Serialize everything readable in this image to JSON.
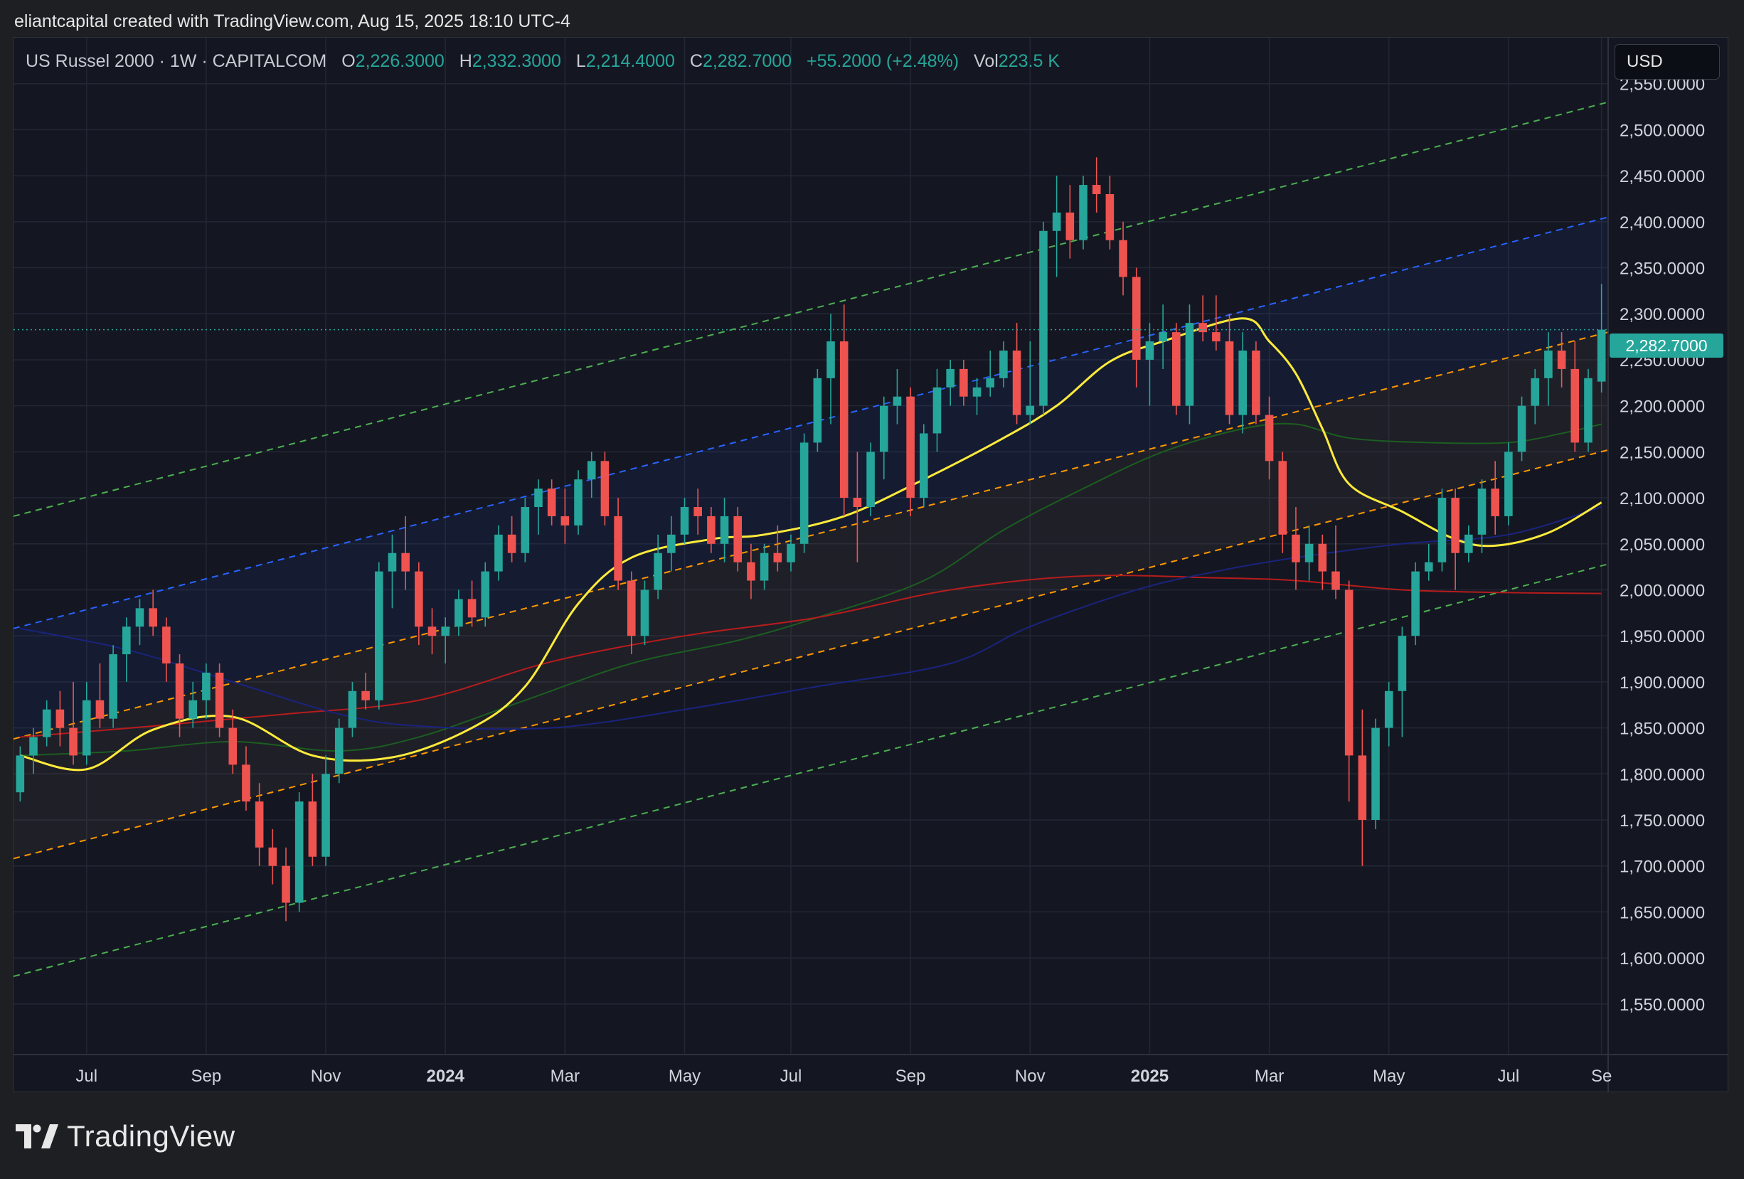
{
  "header": {
    "credit": "eliantcapital created with TradingView.com, Aug 15, 2025 18:10 UTC-4"
  },
  "legend": {
    "symbol": "US Russel 2000 · 1W · CAPITALCOM",
    "open_label": "O",
    "open": "2,226.3000",
    "high_label": "H",
    "high": "2,332.3000",
    "low_label": "L",
    "low": "2,214.4000",
    "close_label": "C",
    "close": "2,282.7000",
    "change": "+55.2000 (+2.48%)",
    "vol_label": "Vol",
    "vol": "223.5 K"
  },
  "currency_button": "USD",
  "last_price_tag": "2,282.7000",
  "brand": {
    "name": "TradingView",
    "logo_icon": "tradingview-logo-icon"
  },
  "colors": {
    "background": "#141722",
    "up_candle": "#26a69a",
    "down_candle": "#ef5350",
    "ema_yellow": "#ffeb3b",
    "ma_green": "#1b5e20",
    "ma_red": "#b71c1c",
    "ma_blue": "#1a237e",
    "channel_outer": "#4caf50",
    "channel_upper": "#2962ff",
    "channel_inner": "#ff9800"
  },
  "chart_data": {
    "type": "candlestick",
    "timeframe": "1W",
    "y_axis": {
      "ticks": [
        1550,
        1600,
        1650,
        1700,
        1750,
        1800,
        1850,
        1900,
        1950,
        2000,
        2050,
        2100,
        2150,
        2200,
        2250,
        2300,
        2350,
        2400,
        2450,
        2500,
        2550
      ],
      "tick_labels": [
        "1,550.0000",
        "1,600.0000",
        "1,650.0000",
        "1,700.0000",
        "1,750.0000",
        "1,800.0000",
        "1,850.0000",
        "1,900.0000",
        "1,950.0000",
        "2,000.0000",
        "2,050.0000",
        "2,100.0000",
        "2,150.0000",
        "2,200.0000",
        "2,250.0000",
        "2,300.0000",
        "2,350.0000",
        "2,400.0000",
        "2,450.0000",
        "2,500.0000",
        "2,550.0000"
      ],
      "range": [
        1495,
        2600
      ],
      "position": "right"
    },
    "x_axis": {
      "labels": [
        {
          "text": "Jul",
          "week": 5,
          "bold": false
        },
        {
          "text": "Sep",
          "week": 14,
          "bold": false
        },
        {
          "text": "Nov",
          "week": 23,
          "bold": false
        },
        {
          "text": "2024",
          "week": 32,
          "bold": true
        },
        {
          "text": "Mar",
          "week": 41,
          "bold": false
        },
        {
          "text": "May",
          "week": 50,
          "bold": false
        },
        {
          "text": "Jul",
          "week": 58,
          "bold": false
        },
        {
          "text": "Sep",
          "week": 67,
          "bold": false
        },
        {
          "text": "Nov",
          "week": 76,
          "bold": false
        },
        {
          "text": "2025",
          "week": 85,
          "bold": true
        },
        {
          "text": "Mar",
          "week": 94,
          "bold": false
        },
        {
          "text": "May",
          "week": 103,
          "bold": false
        },
        {
          "text": "Jul",
          "week": 112,
          "bold": false
        },
        {
          "text": "Se",
          "week": 119,
          "bold": false
        }
      ],
      "range": [
        -0.5,
        119.5
      ]
    },
    "last_price": 2282.7,
    "candles": [
      [
        1780,
        1830,
        1770,
        1820
      ],
      [
        1820,
        1850,
        1800,
        1840
      ],
      [
        1840,
        1880,
        1830,
        1870
      ],
      [
        1870,
        1890,
        1830,
        1850
      ],
      [
        1850,
        1900,
        1810,
        1820
      ],
      [
        1820,
        1900,
        1810,
        1880
      ],
      [
        1880,
        1920,
        1850,
        1860
      ],
      [
        1860,
        1940,
        1850,
        1930
      ],
      [
        1930,
        1970,
        1900,
        1960
      ],
      [
        1960,
        1990,
        1940,
        1980
      ],
      [
        1980,
        2000,
        1950,
        1960
      ],
      [
        1960,
        1970,
        1900,
        1920
      ],
      [
        1920,
        1930,
        1840,
        1860
      ],
      [
        1860,
        1900,
        1850,
        1880
      ],
      [
        1880,
        1920,
        1860,
        1910
      ],
      [
        1910,
        1920,
        1840,
        1850
      ],
      [
        1850,
        1870,
        1800,
        1810
      ],
      [
        1810,
        1830,
        1760,
        1770
      ],
      [
        1770,
        1790,
        1700,
        1720
      ],
      [
        1720,
        1740,
        1680,
        1700
      ],
      [
        1700,
        1720,
        1640,
        1660
      ],
      [
        1660,
        1780,
        1650,
        1770
      ],
      [
        1770,
        1800,
        1700,
        1710
      ],
      [
        1710,
        1820,
        1700,
        1800
      ],
      [
        1800,
        1860,
        1790,
        1850
      ],
      [
        1850,
        1900,
        1840,
        1890
      ],
      [
        1890,
        1910,
        1870,
        1880
      ],
      [
        1880,
        2030,
        1870,
        2020
      ],
      [
        2020,
        2060,
        1980,
        2040
      ],
      [
        2040,
        2080,
        2000,
        2020
      ],
      [
        2020,
        2030,
        1940,
        1960
      ],
      [
        1960,
        1980,
        1930,
        1950
      ],
      [
        1950,
        1970,
        1920,
        1960
      ],
      [
        1960,
        2000,
        1950,
        1990
      ],
      [
        1990,
        2010,
        1960,
        1970
      ],
      [
        1970,
        2030,
        1960,
        2020
      ],
      [
        2020,
        2070,
        2010,
        2060
      ],
      [
        2060,
        2080,
        2030,
        2040
      ],
      [
        2040,
        2100,
        2030,
        2090
      ],
      [
        2090,
        2120,
        2060,
        2110
      ],
      [
        2110,
        2120,
        2070,
        2080
      ],
      [
        2080,
        2110,
        2050,
        2070
      ],
      [
        2070,
        2130,
        2060,
        2120
      ],
      [
        2120,
        2150,
        2100,
        2140
      ],
      [
        2140,
        2150,
        2070,
        2080
      ],
      [
        2080,
        2100,
        2000,
        2010
      ],
      [
        2010,
        2020,
        1930,
        1950
      ],
      [
        1950,
        2010,
        1940,
        2000
      ],
      [
        2000,
        2060,
        1990,
        2040
      ],
      [
        2040,
        2080,
        2020,
        2060
      ],
      [
        2060,
        2100,
        2050,
        2090
      ],
      [
        2090,
        2110,
        2060,
        2080
      ],
      [
        2080,
        2090,
        2040,
        2050
      ],
      [
        2050,
        2100,
        2030,
        2080
      ],
      [
        2080,
        2090,
        2020,
        2030
      ],
      [
        2030,
        2050,
        1990,
        2010
      ],
      [
        2010,
        2050,
        2000,
        2040
      ],
      [
        2040,
        2070,
        2020,
        2030
      ],
      [
        2030,
        2060,
        2020,
        2050
      ],
      [
        2050,
        2170,
        2040,
        2160
      ],
      [
        2160,
        2240,
        2150,
        2230
      ],
      [
        2230,
        2300,
        2180,
        2270
      ],
      [
        2270,
        2310,
        2080,
        2100
      ],
      [
        2100,
        2150,
        2030,
        2090
      ],
      [
        2090,
        2160,
        2080,
        2150
      ],
      [
        2150,
        2210,
        2120,
        2200
      ],
      [
        2200,
        2240,
        2180,
        2210
      ],
      [
        2210,
        2220,
        2080,
        2100
      ],
      [
        2100,
        2180,
        2090,
        2170
      ],
      [
        2170,
        2240,
        2150,
        2220
      ],
      [
        2220,
        2250,
        2200,
        2240
      ],
      [
        2240,
        2250,
        2200,
        2210
      ],
      [
        2210,
        2230,
        2190,
        2220
      ],
      [
        2220,
        2260,
        2210,
        2230
      ],
      [
        2230,
        2270,
        2220,
        2260
      ],
      [
        2260,
        2290,
        2180,
        2190
      ],
      [
        2190,
        2270,
        2180,
        2200
      ],
      [
        2200,
        2400,
        2190,
        2390
      ],
      [
        2390,
        2450,
        2340,
        2410
      ],
      [
        2410,
        2440,
        2360,
        2380
      ],
      [
        2380,
        2450,
        2370,
        2440
      ],
      [
        2440,
        2470,
        2410,
        2430
      ],
      [
        2430,
        2450,
        2370,
        2380
      ],
      [
        2380,
        2400,
        2320,
        2340
      ],
      [
        2340,
        2350,
        2220,
        2250
      ],
      [
        2250,
        2290,
        2200,
        2270
      ],
      [
        2270,
        2310,
        2240,
        2280
      ],
      [
        2280,
        2290,
        2190,
        2200
      ],
      [
        2200,
        2310,
        2180,
        2290
      ],
      [
        2290,
        2320,
        2270,
        2280
      ],
      [
        2280,
        2320,
        2260,
        2270
      ],
      [
        2270,
        2300,
        2180,
        2190
      ],
      [
        2190,
        2280,
        2170,
        2260
      ],
      [
        2260,
        2270,
        2180,
        2190
      ],
      [
        2190,
        2210,
        2120,
        2140
      ],
      [
        2140,
        2150,
        2040,
        2060
      ],
      [
        2060,
        2090,
        2000,
        2030
      ],
      [
        2030,
        2070,
        2010,
        2050
      ],
      [
        2050,
        2060,
        2000,
        2020
      ],
      [
        2020,
        2070,
        1990,
        2000
      ],
      [
        2000,
        2010,
        1770,
        1820
      ],
      [
        1820,
        1870,
        1700,
        1750
      ],
      [
        1750,
        1860,
        1740,
        1850
      ],
      [
        1850,
        1900,
        1830,
        1890
      ],
      [
        1890,
        1960,
        1840,
        1950
      ],
      [
        1950,
        2030,
        1940,
        2020
      ],
      [
        2020,
        2050,
        2010,
        2030
      ],
      [
        2030,
        2110,
        2020,
        2100
      ],
      [
        2100,
        2110,
        2000,
        2040
      ],
      [
        2040,
        2070,
        2030,
        2060
      ],
      [
        2060,
        2120,
        2040,
        2110
      ],
      [
        2110,
        2140,
        2060,
        2080
      ],
      [
        2080,
        2160,
        2070,
        2150
      ],
      [
        2150,
        2210,
        2140,
        2200
      ],
      [
        2200,
        2240,
        2180,
        2230
      ],
      [
        2230,
        2280,
        2200,
        2260
      ],
      [
        2260,
        2280,
        2220,
        2240
      ],
      [
        2240,
        2270,
        2150,
        2160
      ],
      [
        2160,
        2240,
        2150,
        2230
      ],
      [
        2226.3,
        2332.3,
        2214.4,
        2282.7
      ]
    ],
    "moving_averages": [
      {
        "color": "#ffeb3b",
        "width": 3,
        "points": [
          [
            0,
            1820
          ],
          [
            5,
            1805
          ],
          [
            10,
            1848
          ],
          [
            16,
            1862
          ],
          [
            22,
            1820
          ],
          [
            28,
            1818
          ],
          [
            34,
            1850
          ],
          [
            38,
            1895
          ],
          [
            42,
            1985
          ],
          [
            46,
            2035
          ],
          [
            52,
            2055
          ],
          [
            56,
            2060
          ],
          [
            62,
            2080
          ],
          [
            68,
            2120
          ],
          [
            74,
            2165
          ],
          [
            78,
            2200
          ],
          [
            82,
            2248
          ],
          [
            86,
            2270
          ],
          [
            92,
            2295
          ],
          [
            94,
            2270
          ],
          [
            96,
            2235
          ],
          [
            98,
            2175
          ],
          [
            100,
            2115
          ],
          [
            104,
            2085
          ],
          [
            108,
            2055
          ],
          [
            111,
            2048
          ],
          [
            115,
            2062
          ],
          [
            119,
            2095
          ]
        ]
      },
      {
        "color": "#1b5e20",
        "width": 2,
        "points": [
          [
            0,
            1820
          ],
          [
            8,
            1825
          ],
          [
            16,
            1835
          ],
          [
            24,
            1825
          ],
          [
            30,
            1840
          ],
          [
            38,
            1880
          ],
          [
            46,
            1920
          ],
          [
            54,
            1945
          ],
          [
            60,
            1970
          ],
          [
            68,
            2010
          ],
          [
            74,
            2065
          ],
          [
            80,
            2110
          ],
          [
            86,
            2150
          ],
          [
            92,
            2175
          ],
          [
            96,
            2180
          ],
          [
            100,
            2165
          ],
          [
            106,
            2160
          ],
          [
            112,
            2160
          ],
          [
            116,
            2170
          ],
          [
            119,
            2180
          ]
        ]
      },
      {
        "color": "#b71c1c",
        "width": 2,
        "points": [
          [
            0,
            1840
          ],
          [
            10,
            1852
          ],
          [
            20,
            1865
          ],
          [
            30,
            1880
          ],
          [
            40,
            1922
          ],
          [
            50,
            1950
          ],
          [
            60,
            1970
          ],
          [
            70,
            2000
          ],
          [
            80,
            2015
          ],
          [
            90,
            2013
          ],
          [
            96,
            2010
          ],
          [
            104,
            2000
          ],
          [
            112,
            1997
          ],
          [
            119,
            1996
          ]
        ]
      },
      {
        "color": "#1a237e",
        "width": 2,
        "points": [
          [
            0,
            1958
          ],
          [
            8,
            1935
          ],
          [
            16,
            1900
          ],
          [
            24,
            1865
          ],
          [
            30,
            1852
          ],
          [
            40,
            1850
          ],
          [
            50,
            1870
          ],
          [
            60,
            1895
          ],
          [
            70,
            1920
          ],
          [
            76,
            1960
          ],
          [
            84,
            2000
          ],
          [
            90,
            2020
          ],
          [
            96,
            2035
          ],
          [
            104,
            2050
          ],
          [
            112,
            2060
          ],
          [
            119,
            2090
          ]
        ]
      }
    ],
    "channel_lines": [
      {
        "name": "outer-upper",
        "color": "#4caf50",
        "start": [
          -0.5,
          2080
        ],
        "end": [
          119.5,
          2530
        ]
      },
      {
        "name": "upper",
        "color": "#2962ff",
        "start": [
          -0.5,
          1958
        ],
        "end": [
          119.5,
          2405
        ]
      },
      {
        "name": "inner-upper",
        "color": "#ff9800",
        "start": [
          -0.5,
          1838
        ],
        "end": [
          119.5,
          2280
        ]
      },
      {
        "name": "inner-lower",
        "color": "#ff9800",
        "start": [
          -0.5,
          1708
        ],
        "end": [
          119.5,
          2152
        ]
      },
      {
        "name": "outer-lower",
        "color": "#4caf50",
        "start": [
          -0.5,
          1580
        ],
        "end": [
          119.5,
          2028
        ]
      }
    ],
    "grid": true
  }
}
